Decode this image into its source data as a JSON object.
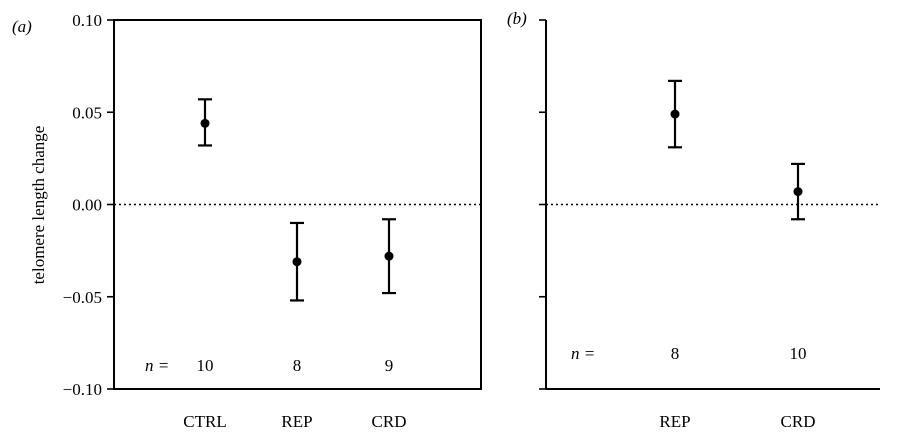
{
  "chart_data": [
    {
      "panel_label": "(a)",
      "type": "scatter",
      "ylabel": "telomere length change",
      "ylim": [
        -0.1,
        0.1
      ],
      "yticks": [
        0.1,
        0.05,
        0.0,
        -0.05,
        -0.1
      ],
      "ytick_labels": [
        "0.10",
        "0.05",
        "0.00",
        "−0.05",
        "−0.10"
      ],
      "categories": [
        "CTRL",
        "REP",
        "CRD"
      ],
      "values": [
        0.044,
        -0.031,
        -0.028
      ],
      "error_low": [
        0.032,
        -0.052,
        -0.048
      ],
      "error_high": [
        0.057,
        -0.01,
        -0.008
      ],
      "n_label": "n =",
      "n_values": [
        "10",
        "8",
        "9"
      ],
      "reference_line": 0.0,
      "grid": false
    },
    {
      "panel_label": "(b)",
      "type": "scatter",
      "ylim": [
        -0.1,
        0.1
      ],
      "yticks": [
        0.1,
        0.05,
        0.0,
        -0.05,
        -0.1
      ],
      "categories": [
        "REP",
        "CRD"
      ],
      "values": [
        0.049,
        0.007
      ],
      "error_low": [
        0.031,
        -0.008
      ],
      "error_high": [
        0.067,
        0.022
      ],
      "n_label": "n =",
      "n_values": [
        "8",
        "10"
      ],
      "reference_line": 0.0,
      "grid": false
    }
  ]
}
